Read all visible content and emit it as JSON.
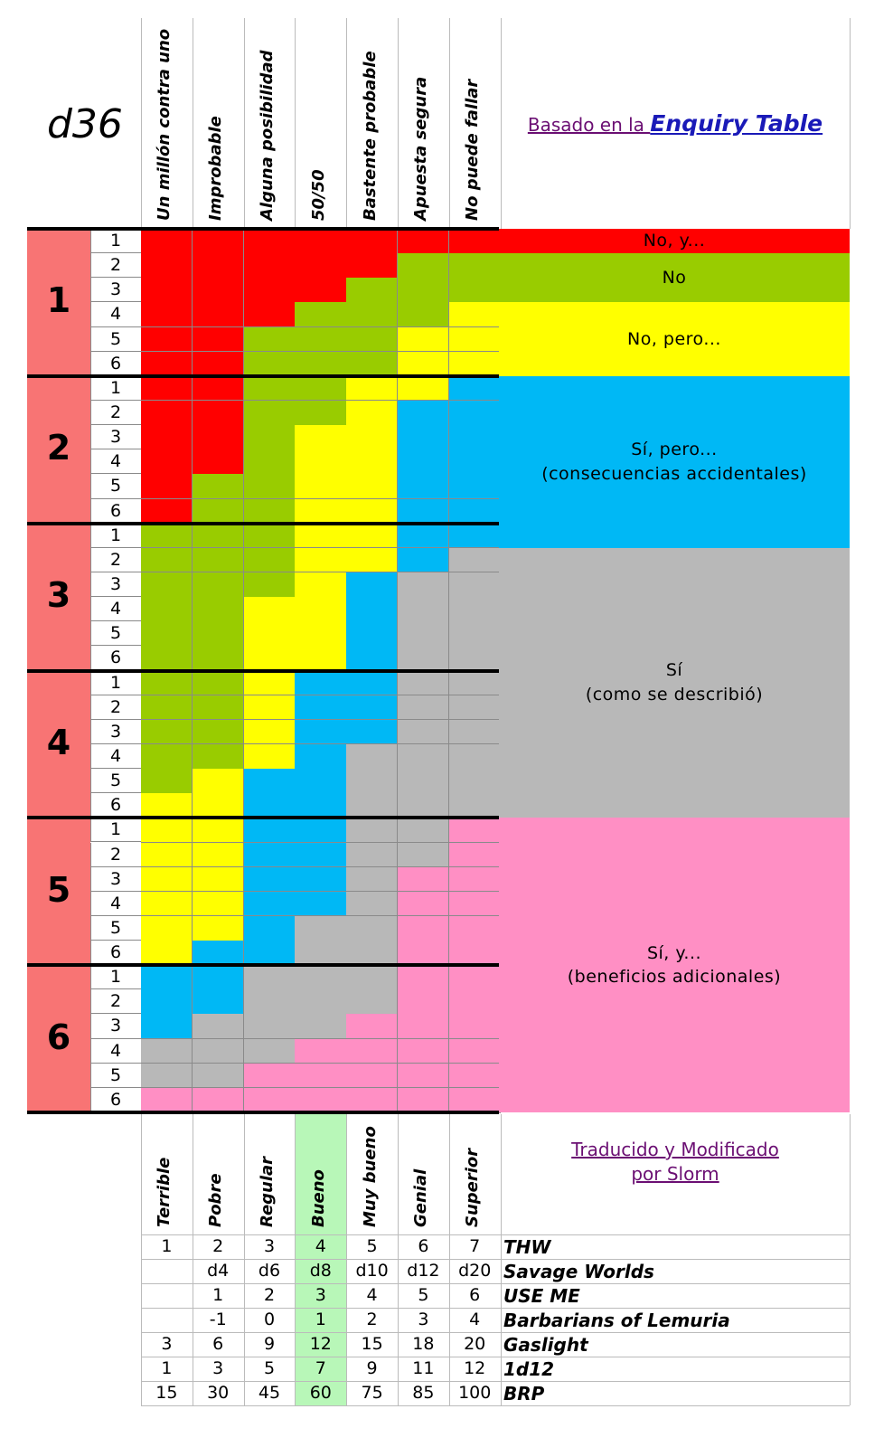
{
  "title": "d36",
  "source": {
    "prefix": "Basado en la ",
    "name": "Enquiry Table"
  },
  "columns": [
    "Un millón contra uno",
    "Improbable",
    "Alguna posibilidad",
    "50/50",
    "Bastente probable",
    "Apuesta segura",
    "No puede fallar"
  ],
  "row_groups": [
    "1",
    "2",
    "3",
    "4",
    "5",
    "6"
  ],
  "row_subs": [
    "1",
    "2",
    "3",
    "4",
    "5",
    "6"
  ],
  "colors": {
    "red": "#ff0000",
    "green": "#99cc00",
    "yellow": "#ffff00",
    "blue": "#00b8f5",
    "gray": "#b8b8b8",
    "pink": "#ff8fc4",
    "salmon": "#f87474",
    "highlight": "#b8f7b8"
  },
  "grid_results": [
    [
      "R",
      "R",
      "R",
      "R",
      "R",
      "R",
      "R"
    ],
    [
      "R",
      "R",
      "R",
      "R",
      "R",
      "G",
      "G"
    ],
    [
      "R",
      "R",
      "R",
      "R",
      "G",
      "G",
      "G"
    ],
    [
      "R",
      "R",
      "R",
      "G",
      "G",
      "G",
      "Y"
    ],
    [
      "R",
      "R",
      "G",
      "G",
      "G",
      "Y",
      "Y"
    ],
    [
      "R",
      "R",
      "G",
      "G",
      "G",
      "Y",
      "Y"
    ],
    [
      "R",
      "R",
      "G",
      "G",
      "Y",
      "Y",
      "B"
    ],
    [
      "R",
      "R",
      "G",
      "G",
      "Y",
      "B",
      "B"
    ],
    [
      "R",
      "R",
      "G",
      "Y",
      "Y",
      "B",
      "B"
    ],
    [
      "R",
      "R",
      "G",
      "Y",
      "Y",
      "B",
      "B"
    ],
    [
      "R",
      "G",
      "G",
      "Y",
      "Y",
      "B",
      "B"
    ],
    [
      "R",
      "G",
      "G",
      "Y",
      "Y",
      "B",
      "B"
    ],
    [
      "G",
      "G",
      "G",
      "Y",
      "Y",
      "B",
      "B"
    ],
    [
      "G",
      "G",
      "G",
      "Y",
      "Y",
      "B",
      "X"
    ],
    [
      "G",
      "G",
      "G",
      "Y",
      "B",
      "X",
      "X"
    ],
    [
      "G",
      "G",
      "Y",
      "Y",
      "B",
      "X",
      "X"
    ],
    [
      "G",
      "G",
      "Y",
      "Y",
      "B",
      "X",
      "X"
    ],
    [
      "G",
      "G",
      "Y",
      "Y",
      "B",
      "X",
      "X"
    ],
    [
      "G",
      "G",
      "Y",
      "B",
      "B",
      "X",
      "X"
    ],
    [
      "G",
      "G",
      "Y",
      "B",
      "B",
      "X",
      "X"
    ],
    [
      "G",
      "G",
      "Y",
      "B",
      "B",
      "X",
      "X"
    ],
    [
      "G",
      "G",
      "Y",
      "B",
      "X",
      "X",
      "X"
    ],
    [
      "G",
      "Y",
      "B",
      "B",
      "X",
      "X",
      "X"
    ],
    [
      "Y",
      "Y",
      "B",
      "B",
      "X",
      "X",
      "X"
    ],
    [
      "Y",
      "Y",
      "B",
      "B",
      "X",
      "X",
      "P"
    ],
    [
      "Y",
      "Y",
      "B",
      "B",
      "X",
      "X",
      "P"
    ],
    [
      "Y",
      "Y",
      "B",
      "B",
      "X",
      "P",
      "P"
    ],
    [
      "Y",
      "Y",
      "B",
      "B",
      "X",
      "P",
      "P"
    ],
    [
      "Y",
      "Y",
      "B",
      "X",
      "X",
      "P",
      "P"
    ],
    [
      "Y",
      "B",
      "B",
      "X",
      "X",
      "P",
      "P"
    ],
    [
      "B",
      "B",
      "X",
      "X",
      "X",
      "P",
      "P"
    ],
    [
      "B",
      "B",
      "X",
      "X",
      "X",
      "P",
      "P"
    ],
    [
      "B",
      "X",
      "X",
      "X",
      "P",
      "P",
      "P"
    ],
    [
      "X",
      "X",
      "X",
      "P",
      "P",
      "P",
      "P"
    ],
    [
      "X",
      "X",
      "P",
      "P",
      "P",
      "P",
      "P"
    ],
    [
      "P",
      "P",
      "P",
      "P",
      "P",
      "P",
      "P"
    ]
  ],
  "outcomes": [
    {
      "lines": [
        "No, y..."
      ],
      "color": "R",
      "rows": [
        0,
        1
      ]
    },
    {
      "lines": [
        "No"
      ],
      "color": "G",
      "rows": [
        1,
        3
      ]
    },
    {
      "lines": [
        "No, pero..."
      ],
      "color": "Y",
      "rows": [
        3,
        6
      ]
    },
    {
      "lines": [
        "Sí, pero...",
        "(consecuencias accidentales)"
      ],
      "color": "B",
      "rows": [
        6,
        13
      ]
    },
    {
      "lines": [
        "Sí",
        "(como se describió)"
      ],
      "color": "X",
      "rows": [
        13,
        24
      ]
    },
    {
      "lines": [
        "Sí, y...",
        "(beneficios adicionales)"
      ],
      "color": "P",
      "rows": [
        24,
        36
      ]
    }
  ],
  "ratings": [
    "Terrible",
    "Pobre",
    "Regular",
    "Bueno",
    "Muy bueno",
    "Genial",
    "Superior"
  ],
  "credit": {
    "line1": "Traducido y Modificado",
    "line2": "por Slorm"
  },
  "systems": [
    {
      "name": "THW",
      "values": [
        "1",
        "2",
        "3",
        "4",
        "5",
        "6",
        "7"
      ]
    },
    {
      "name": "Savage Worlds",
      "values": [
        "",
        "d4",
        "d6",
        "d8",
        "d10",
        "d12",
        "d20"
      ]
    },
    {
      "name": "USE ME",
      "values": [
        "",
        "1",
        "2",
        "3",
        "4",
        "5",
        "6"
      ]
    },
    {
      "name": "Barbarians of Lemuria",
      "values": [
        "",
        "-1",
        "0",
        "1",
        "2",
        "3",
        "4"
      ]
    },
    {
      "name": "Gaslight",
      "values": [
        "3",
        "6",
        "9",
        "12",
        "15",
        "18",
        "20"
      ]
    },
    {
      "name": "1d12",
      "values": [
        "1",
        "3",
        "5",
        "7",
        "9",
        "11",
        "12"
      ]
    },
    {
      "name": "BRP",
      "values": [
        "15",
        "30",
        "45",
        "60",
        "75",
        "85",
        "100"
      ]
    }
  ]
}
